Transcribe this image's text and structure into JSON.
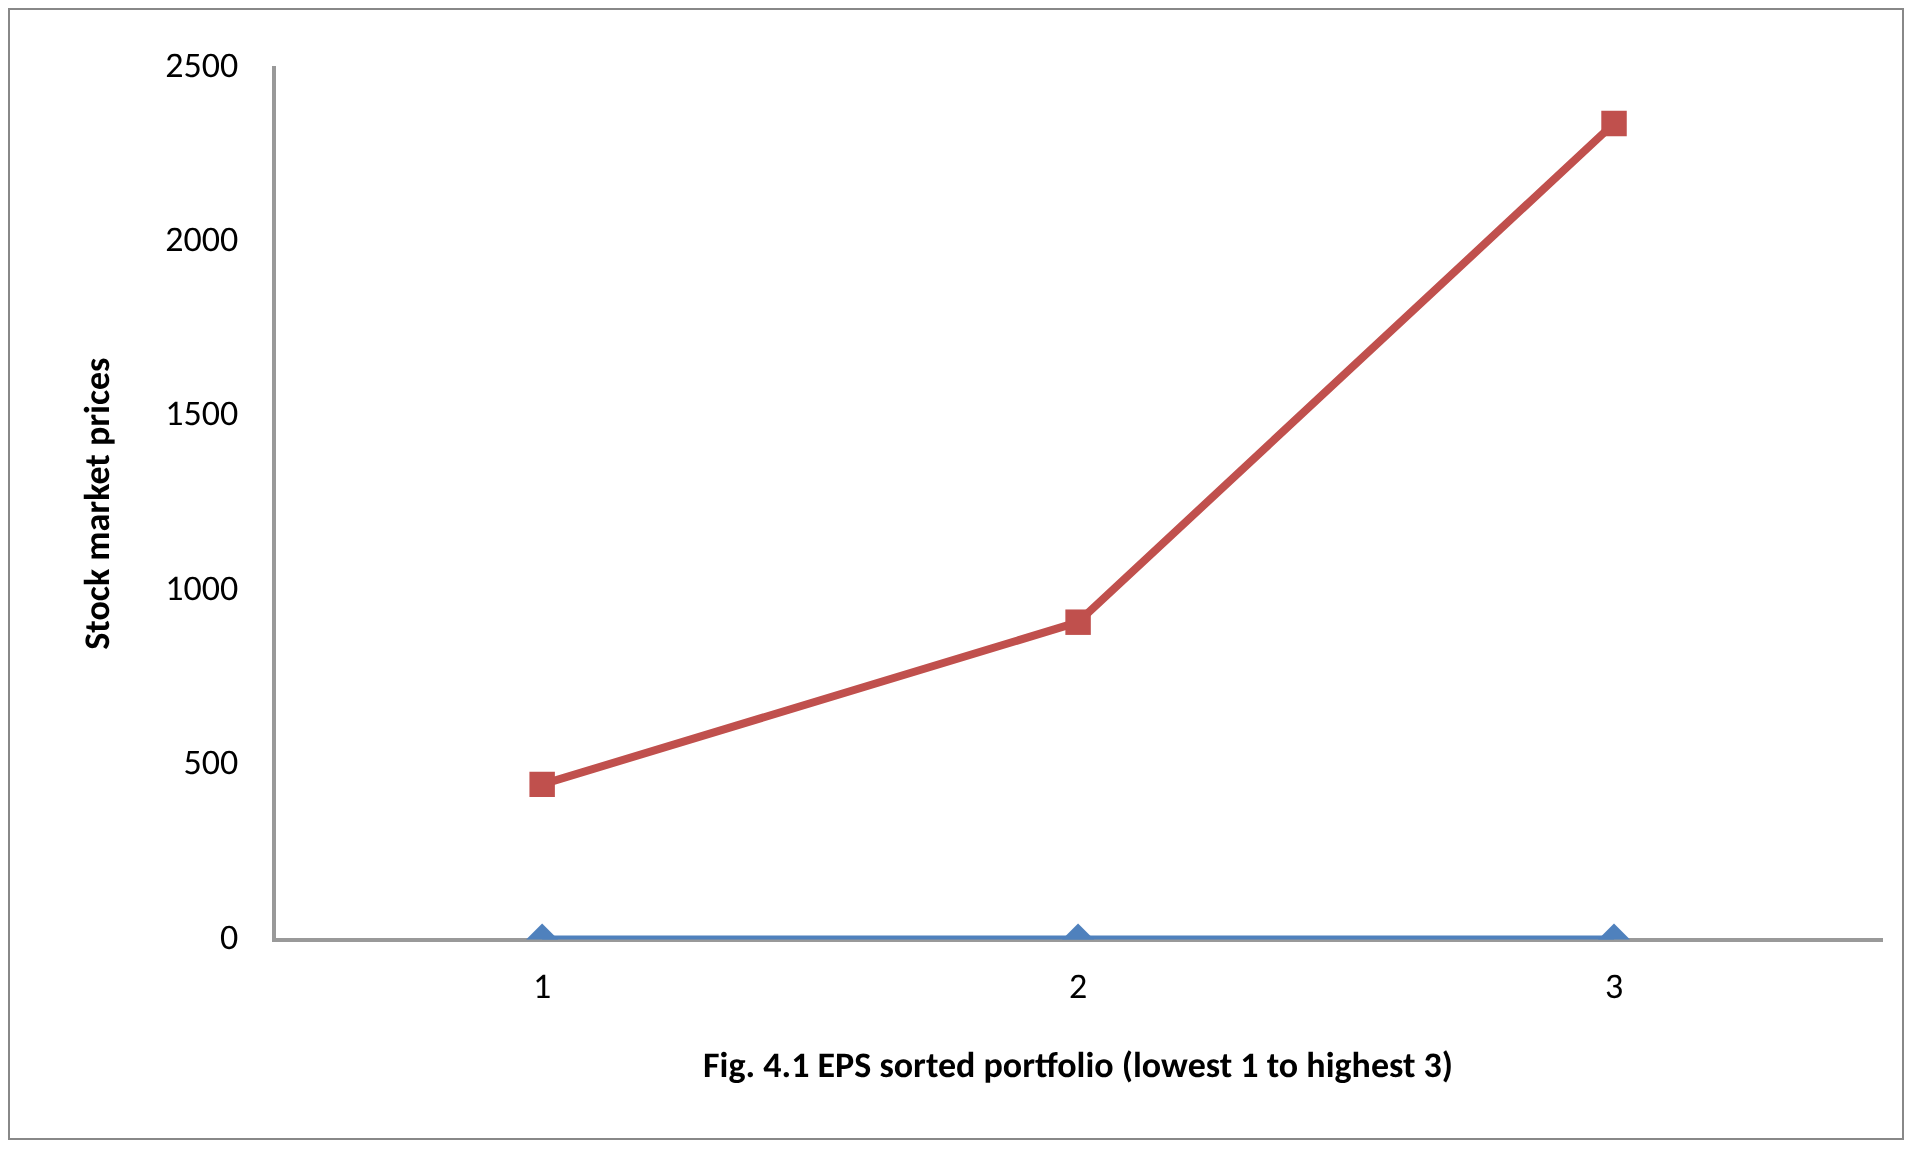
{
  "chart_data": {
    "type": "line",
    "xlabel": "Fig. 4.1 EPS sorted portfolio (lowest 1 to highest 3)",
    "ylabel": "Stock market prices",
    "categories": [
      "1",
      "2",
      "3"
    ],
    "series": [
      {
        "color": "#4f81bd",
        "marker": "diamond",
        "values": [
          0,
          0,
          0
        ]
      },
      {
        "color": "#c0504d",
        "marker": "square",
        "values": [
          445,
          910,
          2340
        ]
      }
    ],
    "ylim": [
      0,
      2500
    ],
    "yticks": [
      0,
      500,
      1000,
      1500,
      2000,
      2500
    ],
    "grid": false,
    "legend": false
  }
}
